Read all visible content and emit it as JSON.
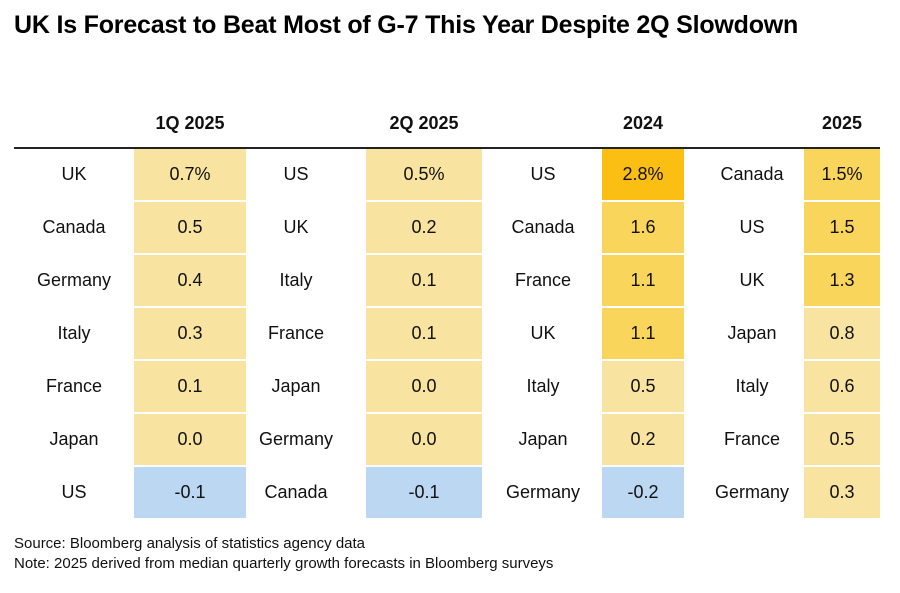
{
  "title": "UK Is Forecast to Beat Most of G-7 This Year Despite 2Q Slowdown",
  "source": "Source: Bloomberg analysis of statistics agency data",
  "note": "Note: 2025 derived from median quarterly growth forecasts in Bloomberg surveys",
  "colors": {
    "pale_yellow": "#f8e3a1",
    "mid_yellow": "#f9d55c",
    "strong_yellow": "#fbc02d",
    "deep_yellow": "#fbbf13",
    "negative_blue": "#bcd7f1"
  },
  "chart_data": {
    "type": "table",
    "columns": [
      {
        "header": "1Q 2025",
        "rows": [
          {
            "country": "UK",
            "value": "0.7%",
            "num": 0.7
          },
          {
            "country": "Canada",
            "value": "0.5",
            "num": 0.5
          },
          {
            "country": "Germany",
            "value": "0.4",
            "num": 0.4
          },
          {
            "country": "Italy",
            "value": "0.3",
            "num": 0.3
          },
          {
            "country": "France",
            "value": "0.1",
            "num": 0.1
          },
          {
            "country": "Japan",
            "value": "0.0",
            "num": 0.0
          },
          {
            "country": "US",
            "value": "-0.1",
            "num": -0.1
          }
        ]
      },
      {
        "header": "2Q 2025",
        "rows": [
          {
            "country": "US",
            "value": "0.5%",
            "num": 0.5
          },
          {
            "country": "UK",
            "value": "0.2",
            "num": 0.2
          },
          {
            "country": "Italy",
            "value": "0.1",
            "num": 0.1
          },
          {
            "country": "France",
            "value": "0.1",
            "num": 0.1
          },
          {
            "country": "Japan",
            "value": "0.0",
            "num": 0.0
          },
          {
            "country": "Germany",
            "value": "0.0",
            "num": 0.0
          },
          {
            "country": "Canada",
            "value": "-0.1",
            "num": -0.1
          }
        ]
      },
      {
        "header": "2024",
        "rows": [
          {
            "country": "US",
            "value": "2.8%",
            "num": 2.8
          },
          {
            "country": "Canada",
            "value": "1.6",
            "num": 1.6
          },
          {
            "country": "France",
            "value": "1.1",
            "num": 1.1
          },
          {
            "country": "UK",
            "value": "1.1",
            "num": 1.1
          },
          {
            "country": "Italy",
            "value": "0.5",
            "num": 0.5
          },
          {
            "country": "Japan",
            "value": "0.2",
            "num": 0.2
          },
          {
            "country": "Germany",
            "value": "-0.2",
            "num": -0.2
          }
        ]
      },
      {
        "header": "2025",
        "rows": [
          {
            "country": "Canada",
            "value": "1.5%",
            "num": 1.5
          },
          {
            "country": "US",
            "value": "1.5",
            "num": 1.5
          },
          {
            "country": "UK",
            "value": "1.3",
            "num": 1.3
          },
          {
            "country": "Japan",
            "value": "0.8",
            "num": 0.8
          },
          {
            "country": "Italy",
            "value": "0.6",
            "num": 0.6
          },
          {
            "country": "France",
            "value": "0.5",
            "num": 0.5
          },
          {
            "country": "Germany",
            "value": "0.3",
            "num": 0.3
          }
        ]
      }
    ]
  }
}
